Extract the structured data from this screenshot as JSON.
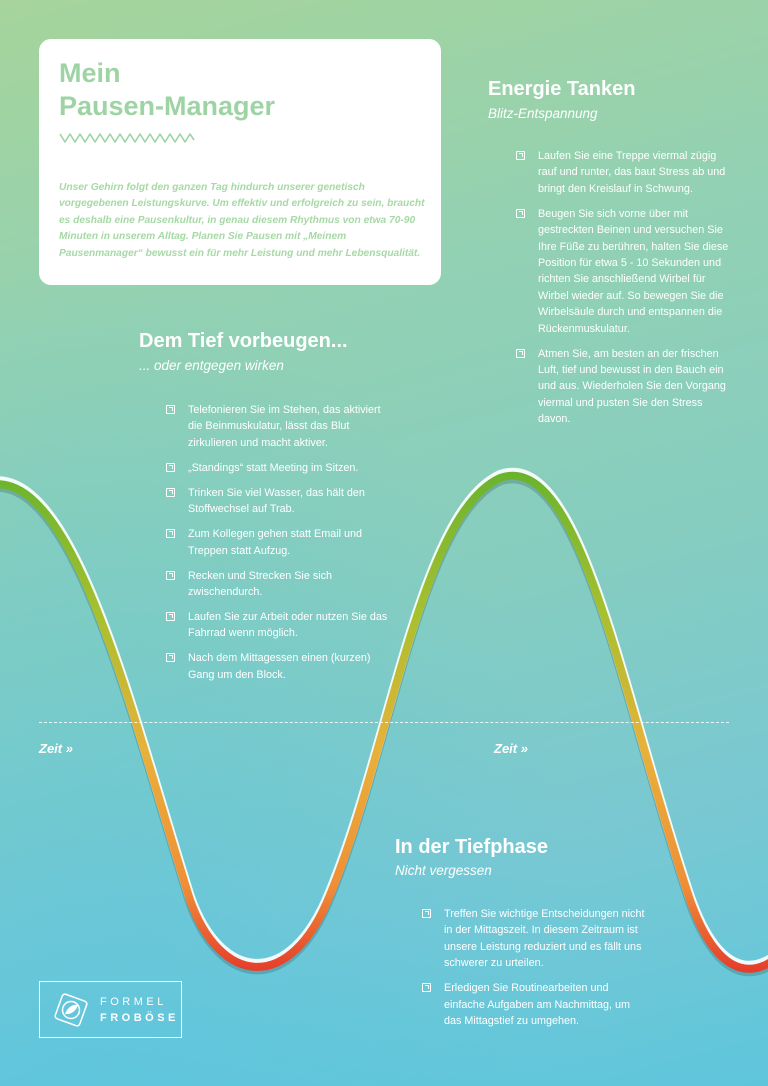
{
  "header": {
    "title_line1": "Mein",
    "title_line2": "Pausen-Manager",
    "intro": "Unser Gehirn folgt den ganzen Tag hindurch unserer genetisch vorgegebenen Leistungskurve. Um effektiv und erfolgreich zu sein, braucht es deshalb eine Pausenkultur, in genau diesem Rhythmus von etwa 70-90 Minuten in unserem Alltag. Planen Sie Pausen mit „Meinem Pausenmanager“ bewusst ein für mehr Leistung und mehr Lebensqualität."
  },
  "energie": {
    "title": "Energie Tanken",
    "subtitle": "Blitz-Entspannung",
    "items": [
      "Laufen Sie eine Treppe viermal zügig rauf und runter, das baut Stress ab und bringt den Kreislauf in Schwung.",
      "Beugen Sie sich vorne über mit gestreckten Beinen und versuchen Sie Ihre Füße zu berühren, halten Sie diese Position für etwa 5 - 10 Sekunden und richten Sie anschließend Wirbel für Wirbel wieder auf. So bewegen Sie die Wirbelsäule durch und entspannen die Rückenmuskulatur.",
      "Atmen Sie, am besten an der frischen Luft, tief und bewusst in den Bauch ein und aus. Wiederholen Sie den Vorgang viermal und pusten Sie den Stress davon."
    ]
  },
  "vorbeugen": {
    "title": "Dem Tief vorbeugen...",
    "subtitle": "... oder entgegen wirken",
    "items": [
      "Telefonieren Sie im Stehen, das aktiviert die Beinmuskulatur, lässt das Blut zirkulieren und macht aktiver.",
      "„Standings“ statt Meeting im Sitzen.",
      "Trinken Sie viel Wasser, das hält den Stoffwechsel auf Trab.",
      "Zum Kollegen gehen statt Email und Treppen statt Aufzug.",
      "Recken und Strecken Sie sich zwischendurch.",
      "Laufen Sie zur Arbeit oder nutzen Sie das Fahrrad wenn möglich.",
      "Nach dem Mittagessen einen (kurzen) Gang um den Block."
    ]
  },
  "timeline": {
    "label_left": "Zeit »",
    "label_right": "Zeit »"
  },
  "tiefphase": {
    "title": "In der Tiefphase",
    "subtitle": "Nicht vergessen",
    "items": [
      "Treffen Sie wichtige Entscheidungen nicht in der Mittagszeit. In diesem Zeitraum ist unsere Leistung reduziert und es fällt uns schwerer zu urteilen.",
      "Erledigen Sie Routinearbeiten und einfache Aufgaben am Nachmittag, um das Mittagstief zu umgehen."
    ]
  },
  "logo": {
    "line1": "FORMEL",
    "line2": "FROBÖSE"
  },
  "colors": {
    "accent_green": "#9ed3a4",
    "curve_high": "#6ab42d",
    "curve_mid": "#e8b13a",
    "curve_low": "#e5392b"
  }
}
